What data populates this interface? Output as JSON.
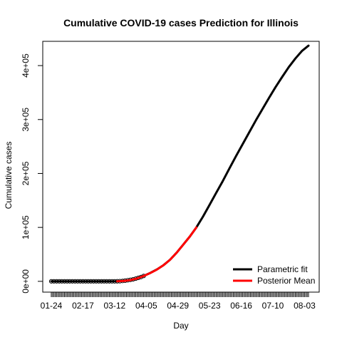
{
  "chart_data": {
    "type": "line",
    "title": "Cumulative COVID-19 cases Prediction for Illinois",
    "xlabel": "Day",
    "ylabel": "Cumulative cases",
    "x_tick_labels": [
      "01-24",
      "02-17",
      "03-12",
      "04-05",
      "04-29",
      "05-23",
      "06-16",
      "07-10",
      "08-03"
    ],
    "y_tick_labels": [
      "0e+00",
      "1e+05",
      "2e+05",
      "3e+05",
      "4e+05"
    ],
    "y_ticks": [
      0,
      100000,
      200000,
      300000,
      400000
    ],
    "ylim": [
      -20000,
      445000
    ],
    "x_day_range": [
      0,
      195
    ],
    "x_tick_days": [
      0,
      24,
      48,
      72,
      96,
      120,
      144,
      168,
      192
    ],
    "grid": false,
    "legend_position": "bottom-right",
    "series": [
      {
        "name": "Parametric fit",
        "color": "#000000",
        "x": [
          0,
          20,
          40,
          50,
          55,
          60,
          65,
          70,
          75,
          80,
          85,
          90,
          95,
          100,
          105,
          110,
          115,
          120,
          125,
          130,
          135,
          140,
          145,
          150,
          155,
          160,
          165,
          170,
          175,
          180,
          185,
          190,
          195
        ],
        "values": [
          0,
          0,
          0,
          200,
          1000,
          2500,
          5500,
          10000,
          15500,
          22000,
          30000,
          40000,
          53000,
          68000,
          83000,
          100000,
          120000,
          142000,
          164000,
          186000,
          209000,
          232000,
          254000,
          276000,
          298000,
          319000,
          340000,
          360000,
          379000,
          397000,
          413000,
          427000,
          437000
        ]
      },
      {
        "name": "Posterior Mean",
        "color": "#ff0000",
        "x": [
          50,
          55,
          60,
          65,
          70,
          75,
          80,
          85,
          90,
          95,
          100,
          105,
          110
        ],
        "values": [
          100,
          800,
          2300,
          5300,
          9800,
          15300,
          21800,
          29800,
          40000,
          53000,
          68000,
          83000,
          100000
        ]
      }
    ],
    "observed_points": {
      "x": [
        0,
        2,
        4,
        6,
        8,
        10,
        12,
        14,
        16,
        18,
        20,
        22,
        24,
        26,
        28,
        30,
        32,
        34,
        36,
        38,
        40,
        42,
        44,
        46,
        48,
        50,
        52,
        54,
        56,
        58,
        60,
        62,
        64,
        66,
        68,
        70
      ],
      "values": [
        0,
        0,
        0,
        0,
        0,
        0,
        0,
        0,
        0,
        0,
        0,
        0,
        0,
        0,
        0,
        0,
        0,
        0,
        0,
        0,
        0,
        0,
        0,
        0,
        20,
        100,
        300,
        700,
        1300,
        2000,
        2800,
        3700,
        5000,
        6500,
        8000,
        10000
      ]
    }
  }
}
